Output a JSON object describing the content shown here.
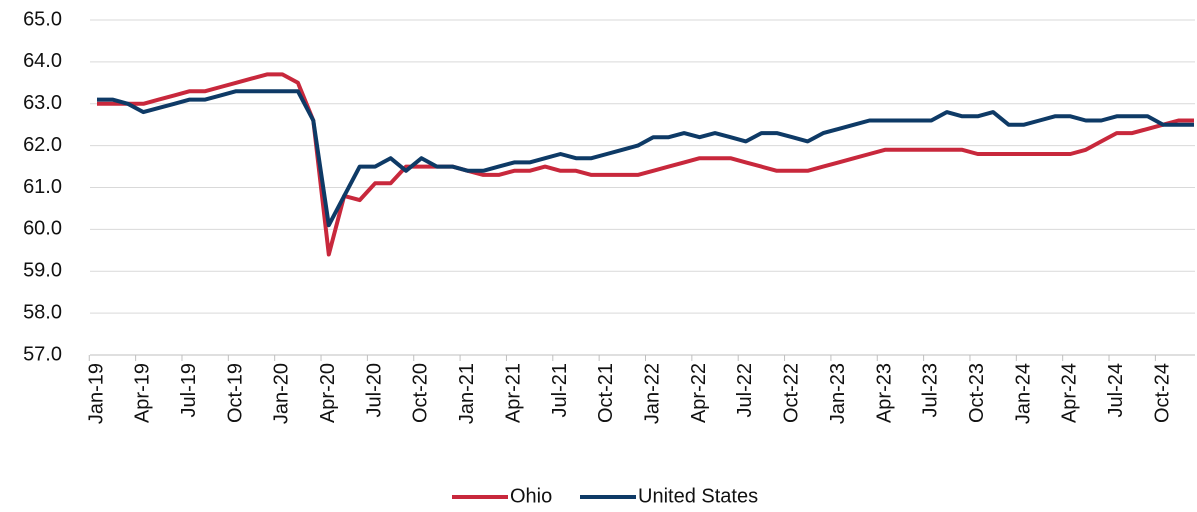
{
  "chart_data": {
    "type": "line",
    "categories": [
      "Jan-19",
      null,
      null,
      "Apr-19",
      null,
      null,
      "Jul-19",
      null,
      null,
      "Oct-19",
      null,
      null,
      "Jan-20",
      null,
      null,
      "Apr-20",
      null,
      null,
      "Jul-20",
      null,
      null,
      "Oct-20",
      null,
      null,
      "Jan-21",
      null,
      null,
      "Apr-21",
      null,
      null,
      "Jul-21",
      null,
      null,
      "Oct-21",
      null,
      null,
      "Jan-22",
      null,
      null,
      "Apr-22",
      null,
      null,
      "Jul-22",
      null,
      null,
      "Oct-22",
      null,
      null,
      "Jan-23",
      null,
      null,
      "Apr-23",
      null,
      null,
      "Jul-23",
      null,
      null,
      "Oct-23",
      null,
      null,
      "Jan-24",
      null,
      null,
      "Apr-24",
      null,
      null,
      "Jul-24",
      null,
      null,
      "Oct-24",
      null,
      null
    ],
    "series": [
      {
        "name": "Ohio",
        "color": "#c8283c",
        "values": [
          63.0,
          63.0,
          63.0,
          63.0,
          63.1,
          63.2,
          63.3,
          63.3,
          63.4,
          63.5,
          63.6,
          63.7,
          63.7,
          63.5,
          62.6,
          59.4,
          60.8,
          60.7,
          61.1,
          61.1,
          61.5,
          61.5,
          61.5,
          61.5,
          61.4,
          61.3,
          61.3,
          61.4,
          61.4,
          61.5,
          61.4,
          61.4,
          61.3,
          61.3,
          61.3,
          61.3,
          61.4,
          61.5,
          61.6,
          61.7,
          61.7,
          61.7,
          61.6,
          61.5,
          61.4,
          61.4,
          61.4,
          61.5,
          61.6,
          61.7,
          61.8,
          61.9,
          61.9,
          61.9,
          61.9,
          61.9,
          61.9,
          61.8,
          61.8,
          61.8,
          61.8,
          61.8,
          61.8,
          61.8,
          61.9,
          62.1,
          62.3,
          62.3,
          62.4,
          62.5,
          62.6,
          62.6
        ]
      },
      {
        "name": "United States",
        "color": "#0e3a66",
        "values": [
          63.1,
          63.1,
          63.0,
          62.8,
          62.9,
          63.0,
          63.1,
          63.1,
          63.2,
          63.3,
          63.3,
          63.3,
          63.3,
          63.3,
          62.6,
          60.1,
          60.8,
          61.5,
          61.5,
          61.7,
          61.4,
          61.7,
          61.5,
          61.5,
          61.4,
          61.4,
          61.5,
          61.6,
          61.6,
          61.7,
          61.8,
          61.7,
          61.7,
          61.8,
          61.9,
          62.0,
          62.2,
          62.2,
          62.3,
          62.2,
          62.3,
          62.2,
          62.1,
          62.3,
          62.3,
          62.2,
          62.1,
          62.3,
          62.4,
          62.5,
          62.6,
          62.6,
          62.6,
          62.6,
          62.6,
          62.8,
          62.7,
          62.7,
          62.8,
          62.5,
          62.5,
          62.6,
          62.7,
          62.7,
          62.6,
          62.6,
          62.7,
          62.7,
          62.7,
          62.5,
          62.5,
          62.5
        ]
      }
    ],
    "ylim": [
      57,
      65
    ],
    "yticks": [
      {
        "value": 57,
        "label": "57.0"
      },
      {
        "value": 58,
        "label": "58.0"
      },
      {
        "value": 59,
        "label": "59.0"
      },
      {
        "value": 60,
        "label": "60.0"
      },
      {
        "value": 61,
        "label": "61.0"
      },
      {
        "value": 62,
        "label": "62.0"
      },
      {
        "value": 63,
        "label": "63.0"
      },
      {
        "value": 64,
        "label": "64.0"
      },
      {
        "value": 65,
        "label": "65.0"
      }
    ],
    "grid": true,
    "legend": "bottom"
  }
}
